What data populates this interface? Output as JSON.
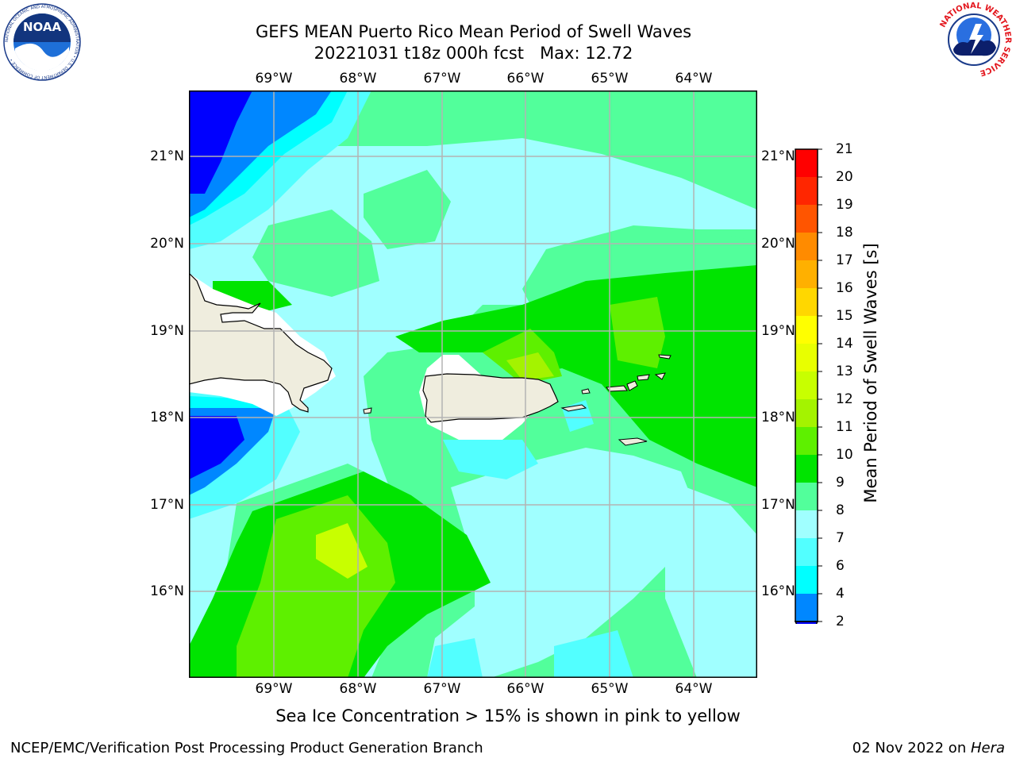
{
  "header": {
    "title_line1": "GEFS MEAN Puerto Rico Mean Period of Swell Waves",
    "title_line2": "20221031 t18z 000h fcst   Max: 12.72"
  },
  "logos": {
    "noaa": {
      "icon": "noaa-logo",
      "text": "NOAA",
      "ring_text": "NATIONAL OCEANIC AND ATMOSPHERIC ADMINISTRATION • U.S. DEPARTMENT OF COMMERCE •"
    },
    "nws": {
      "icon": "nws-logo",
      "ring_text": "NATIONAL WEATHER SERVICE"
    }
  },
  "map": {
    "lon_labels": [
      "69°W",
      "68°W",
      "67°W",
      "66°W",
      "65°W",
      "64°W"
    ],
    "lat_labels": [
      "21°N",
      "20°N",
      "19°N",
      "18°N",
      "17°N",
      "16°N"
    ],
    "colors": {
      "land": "#efedde",
      "blank": "#ffffff",
      "grid": "#b3b3b3"
    }
  },
  "colorbar": {
    "title": "Mean Period of Swell Waves [s]",
    "labels": [
      "2",
      "4",
      "6",
      "7",
      "8",
      "9",
      "10",
      "11",
      "12",
      "13",
      "14",
      "15",
      "16",
      "17",
      "18",
      "19",
      "20",
      "21"
    ],
    "colors": [
      "#0000ff",
      "#0087ff",
      "#00ffff",
      "#52ffff",
      "#a0ffff",
      "#52ff9b",
      "#00e400",
      "#5ef000",
      "#a4f300",
      "#c8ff00",
      "#e8ff00",
      "#ffff00",
      "#ffd700",
      "#ffb000",
      "#ff8b00",
      "#ff5500",
      "#ff2600",
      "#ff0000"
    ]
  },
  "subtitle": "Sea Ice Concentration > 15% is shown in pink to yellow",
  "footer": {
    "left": "NCEP/EMC/Verification Post Processing Product Generation Branch",
    "date": "02 Nov 2022 on ",
    "host": "Hera"
  }
}
